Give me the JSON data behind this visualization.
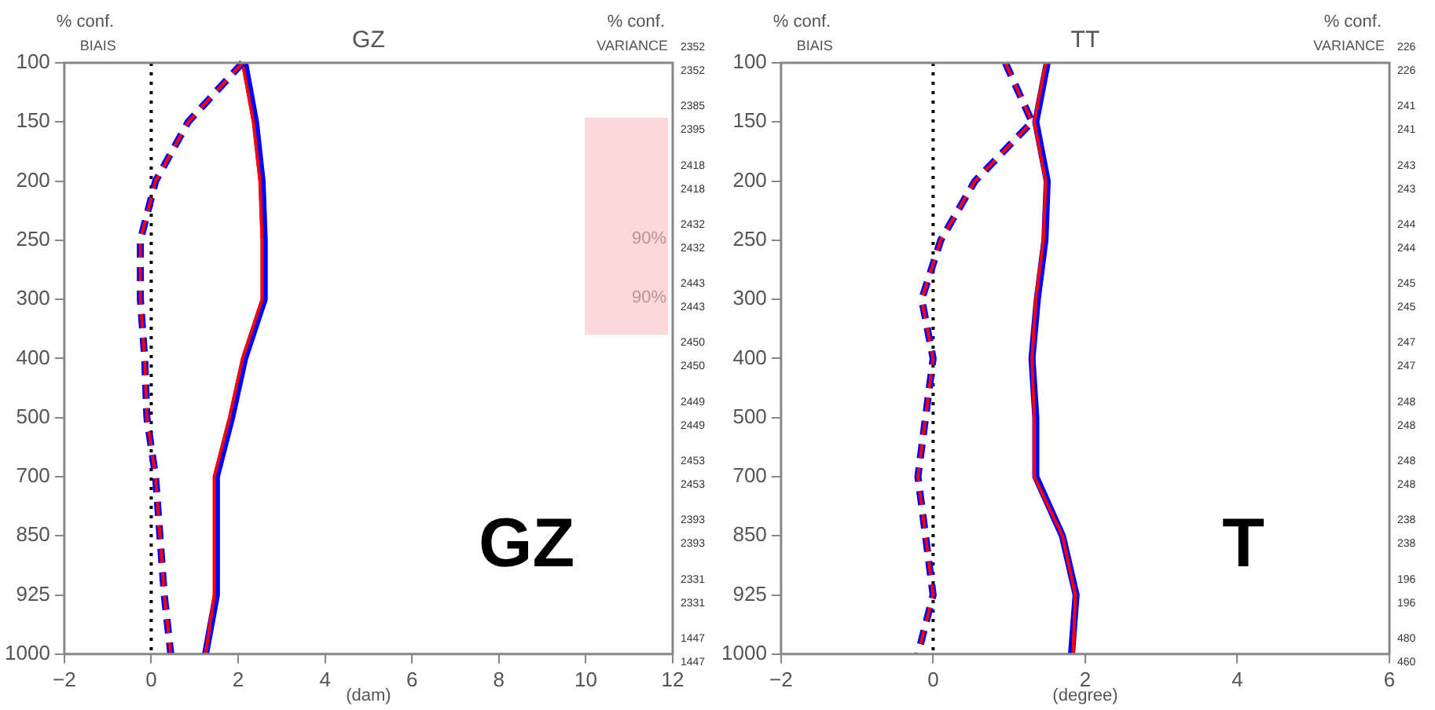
{
  "chart_data": [
    {
      "type": "line",
      "title": "GZ",
      "xlabel": "(dam)",
      "orientation": "horizontal",
      "categories": [
        "100",
        "150",
        "200",
        "250",
        "300",
        "400",
        "500",
        "700",
        "850",
        "925",
        "1000"
      ],
      "xlim": [
        -2,
        12
      ],
      "xticks": [
        -2,
        0,
        2,
        4,
        6,
        8,
        10,
        12
      ],
      "grid": false,
      "legend": false,
      "marker": "none",
      "series": [
        {
          "color": "#0000ff",
          "line_style": "solid",
          "values": [
            2.15,
            2.4,
            2.55,
            2.6,
            2.6,
            2.15,
            1.85,
            1.5,
            1.5,
            1.5,
            1.25
          ]
        },
        {
          "color": "#ff0000",
          "line_style": "solid",
          "values": [
            2.1,
            2.35,
            2.5,
            2.55,
            2.55,
            2.1,
            1.8,
            1.45,
            1.45,
            1.45,
            1.25
          ]
        },
        {
          "color": "#0000ff",
          "line_style": "dashed",
          "values": [
            2.1,
            0.85,
            0.1,
            -0.25,
            -0.25,
            -0.15,
            -0.1,
            0.1,
            0.2,
            0.3,
            0.45
          ]
        },
        {
          "color": "#ff0000",
          "line_style": "dashed",
          "values": [
            2.1,
            0.85,
            0.1,
            -0.25,
            -0.25,
            -0.15,
            -0.1,
            0.1,
            0.2,
            0.3,
            0.45
          ]
        }
      ],
      "ref_lines": [
        {
          "axis": "x",
          "value": 0,
          "color": "#000000",
          "line_style": "dotted"
        }
      ],
      "annotations": [
        "% conf.",
        "% conf.",
        "BIAIS",
        "VARIANCE",
        "GZ",
        "2352",
        "2352",
        "2385",
        "2395",
        "2418",
        "2418",
        "2432",
        "2432",
        "2443",
        "2443",
        "2450",
        "2450",
        "2449",
        "2449",
        "2453",
        "2453",
        "2393",
        "2393",
        "2331",
        "2331",
        "1447",
        "1447",
        "90%",
        "90%"
      ]
    },
    {
      "type": "line",
      "title": "TT",
      "xlabel": "(degree)",
      "orientation": "horizontal",
      "categories": [
        "100",
        "150",
        "200",
        "250",
        "300",
        "400",
        "500",
        "700",
        "850",
        "925",
        "1000"
      ],
      "xlim": [
        -2,
        6
      ],
      "xticks": [
        -2,
        0,
        2,
        4,
        6
      ],
      "grid": false,
      "legend": false,
      "marker": "none",
      "series": [
        {
          "color": "#0000ff",
          "line_style": "solid",
          "values": [
            1.5,
            1.35,
            1.5,
            1.47,
            1.37,
            1.3,
            1.35,
            1.35,
            1.7,
            1.88,
            1.82
          ]
        },
        {
          "color": "#ff0000",
          "line_style": "solid",
          "values": [
            1.48,
            1.33,
            1.48,
            1.45,
            1.35,
            1.3,
            1.33,
            1.33,
            1.7,
            1.87,
            1.84
          ]
        },
        {
          "color": "#0000ff",
          "line_style": "dashed",
          "values": [
            0.95,
            1.3,
            0.55,
            0.1,
            -0.15,
            0,
            -0.1,
            -0.2,
            -0.1,
            0,
            -0.2
          ]
        },
        {
          "color": "#ff0000",
          "line_style": "dashed",
          "values": [
            0.95,
            1.3,
            0.55,
            0.1,
            -0.15,
            0,
            -0.1,
            -0.2,
            -0.1,
            0,
            -0.2
          ]
        }
      ],
      "ref_lines": [
        {
          "axis": "x",
          "value": 0,
          "color": "#000000",
          "line_style": "dotted"
        }
      ],
      "annotations": [
        "% conf.",
        "% conf.",
        "BIAIS",
        "VARIANCE",
        "T",
        "226",
        "226",
        "241",
        "241",
        "243",
        "243",
        "244",
        "244",
        "245",
        "245",
        "247",
        "247",
        "248",
        "248",
        "248",
        "248",
        "238",
        "238",
        "196",
        "196",
        "480",
        "460"
      ]
    }
  ]
}
